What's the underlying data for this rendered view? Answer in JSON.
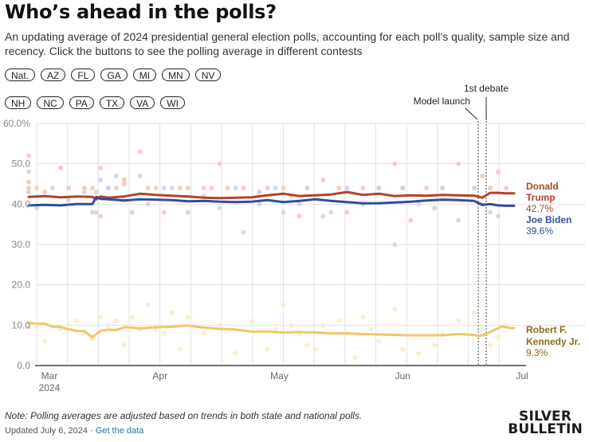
{
  "header": {
    "title": "Who’s ahead in the polls?",
    "subtitle": "An updating average of 2024 presidential general election polls, accounting for each poll’s quality, sample size and recency. Click the buttons to see the polling average in different contests"
  },
  "buttons": {
    "row1": [
      "Nat.",
      "AZ",
      "FL",
      "GA",
      "MI",
      "MN",
      "NV"
    ],
    "row2": [
      "NH",
      "NC",
      "PA",
      "TX",
      "VA",
      "WI"
    ]
  },
  "footer": {
    "note": "Note: Polling averages are adjusted based on trends in both state and national polls.",
    "updated": "Updated July 6, 2024",
    "separator": "·",
    "data_link": "Get the data",
    "logo_line1": "SILVER",
    "logo_line2": "BULLETIN"
  },
  "colors": {
    "trump": "#b5412b",
    "biden": "#2f4f9c",
    "kennedy": "#f5c46a",
    "kennedy_label": "#8a6a1e",
    "trump_dot": "#f2c4b8",
    "biden_dot": "#c9d2ea",
    "kennedy_dot": "#fde9c8",
    "grid": "#e2e2e2"
  },
  "chart_data": {
    "type": "line",
    "title": "Who’s ahead in the polls?",
    "xlabel": "",
    "ylabel": "",
    "x_range": [
      "2024-02-28",
      "2024-06-30"
    ],
    "ylim": [
      0,
      60
    ],
    "y_ticks": [
      {
        "value": 0,
        "label": "0.0"
      },
      {
        "value": 10,
        "label": "10.0"
      },
      {
        "value": 20,
        "label": "20.0"
      },
      {
        "value": 30,
        "label": "30.0"
      },
      {
        "value": 40,
        "label": "40.0"
      },
      {
        "value": 50,
        "label": "50.0"
      },
      {
        "value": 60,
        "label": "60.0%"
      }
    ],
    "x_ticks": [
      {
        "day": 2,
        "label": "Mar",
        "sublabel": "2024"
      },
      {
        "day": 33,
        "label": "Apr",
        "sublabel": ""
      },
      {
        "day": 63,
        "label": "May",
        "sublabel": ""
      },
      {
        "day": 94,
        "label": "Jun",
        "sublabel": ""
      },
      {
        "day": 124,
        "label": "Jul",
        "sublabel": ""
      }
    ],
    "grid": true,
    "legend": "right-end-labels",
    "annotations": [
      {
        "label": "Model launch",
        "day": 113
      },
      {
        "label": "1st debate",
        "day": 115
      }
    ],
    "series": [
      {
        "name": "Donald Trump",
        "label_line1": "Donald",
        "label_line2": "Trump",
        "final": "42.7%",
        "color": "#b5412b",
        "x": [
          0,
          4,
          8,
          12,
          16,
          17,
          18,
          20,
          24,
          28,
          32,
          36,
          40,
          44,
          48,
          52,
          56,
          60,
          64,
          68,
          72,
          76,
          80,
          84,
          88,
          92,
          96,
          100,
          104,
          108,
          112,
          114,
          116,
          118,
          120,
          122
        ],
        "values": [
          41.8,
          42.0,
          41.7,
          41.9,
          41.8,
          41.2,
          41.9,
          41.6,
          41.9,
          42.6,
          42.3,
          42.1,
          41.9,
          41.6,
          41.5,
          41.6,
          41.7,
          42.2,
          42.6,
          42.0,
          42.2,
          42.4,
          43.0,
          42.3,
          42.6,
          42.0,
          42.2,
          42.1,
          42.3,
          42.2,
          42.1,
          41.6,
          42.8,
          42.8,
          42.7,
          42.7
        ]
      },
      {
        "name": "Joe Biden",
        "label_line1": "Joe Biden",
        "label_line2": "",
        "final": "39.6%",
        "color": "#2f4f9c",
        "x": [
          0,
          4,
          8,
          12,
          16,
          17,
          18,
          20,
          24,
          28,
          32,
          36,
          40,
          44,
          48,
          52,
          56,
          60,
          64,
          68,
          72,
          76,
          80,
          84,
          88,
          92,
          96,
          100,
          104,
          108,
          112,
          114,
          116,
          118,
          120,
          122
        ],
        "values": [
          39.7,
          39.8,
          39.7,
          40.0,
          40.0,
          41.8,
          41.3,
          41.2,
          40.9,
          41.2,
          41.1,
          41.0,
          40.7,
          40.8,
          40.6,
          40.5,
          40.6,
          41.0,
          40.5,
          40.8,
          41.2,
          40.8,
          40.5,
          40.2,
          40.2,
          40.4,
          40.6,
          40.9,
          41.1,
          41.0,
          40.8,
          39.8,
          40.0,
          39.7,
          39.6,
          39.6
        ]
      },
      {
        "name": "Robert F. Kennedy Jr.",
        "label_line1": "Robert F.",
        "label_line2": "Kennedy Jr.",
        "final": "9.3%",
        "color": "#f5c46a",
        "x": [
          0,
          2,
          4,
          6,
          8,
          10,
          12,
          14,
          16,
          18,
          20,
          22,
          24,
          26,
          28,
          32,
          36,
          40,
          44,
          48,
          52,
          56,
          60,
          64,
          68,
          72,
          76,
          80,
          84,
          88,
          92,
          96,
          100,
          104,
          108,
          112,
          113,
          115,
          117,
          119,
          121,
          122
        ],
        "values": [
          10.5,
          10.4,
          10.4,
          9.6,
          9.6,
          9.0,
          8.6,
          8.5,
          7.0,
          8.6,
          8.9,
          8.8,
          9.5,
          9.4,
          9.2,
          9.5,
          9.6,
          9.9,
          9.4,
          9.1,
          8.9,
          8.4,
          8.4,
          8.2,
          8.3,
          8.2,
          8.0,
          8.0,
          7.8,
          7.7,
          7.6,
          7.5,
          7.5,
          7.5,
          7.8,
          7.6,
          7.3,
          7.8,
          8.8,
          9.7,
          9.3,
          9.3
        ]
      }
    ],
    "poll_dots": {
      "trump": [
        [
          0,
          52
        ],
        [
          0,
          45.5
        ],
        [
          0,
          44
        ],
        [
          2,
          44
        ],
        [
          4,
          43
        ],
        [
          8,
          49
        ],
        [
          10,
          44
        ],
        [
          14,
          44
        ],
        [
          16,
          44
        ],
        [
          17,
          43
        ],
        [
          18,
          37
        ],
        [
          18,
          49
        ],
        [
          20,
          44
        ],
        [
          22,
          44
        ],
        [
          24,
          45
        ],
        [
          24,
          46
        ],
        [
          28,
          53
        ],
        [
          30,
          44
        ],
        [
          32,
          44
        ],
        [
          34,
          38
        ],
        [
          38,
          44
        ],
        [
          40,
          44
        ],
        [
          44,
          44
        ],
        [
          46,
          44
        ],
        [
          48,
          50
        ],
        [
          50,
          44
        ],
        [
          54,
          44
        ],
        [
          58,
          43
        ],
        [
          60,
          44
        ],
        [
          64,
          44
        ],
        [
          66,
          42
        ],
        [
          68,
          37
        ],
        [
          70,
          44
        ],
        [
          74,
          46
        ],
        [
          78,
          44
        ],
        [
          80,
          38
        ],
        [
          84,
          44
        ],
        [
          88,
          44
        ],
        [
          92,
          50
        ],
        [
          94,
          44
        ],
        [
          96,
          36
        ],
        [
          100,
          44
        ],
        [
          104,
          44
        ],
        [
          108,
          50
        ],
        [
          112,
          44
        ],
        [
          114,
          47
        ],
        [
          116,
          44
        ],
        [
          118,
          48
        ],
        [
          120,
          44
        ]
      ],
      "biden": [
        [
          0,
          48
        ],
        [
          0,
          43
        ],
        [
          2,
          39
        ],
        [
          6,
          44
        ],
        [
          10,
          41
        ],
        [
          14,
          43
        ],
        [
          16,
          38
        ],
        [
          17,
          38
        ],
        [
          18,
          46
        ],
        [
          20,
          44
        ],
        [
          22,
          47
        ],
        [
          24,
          41
        ],
        [
          26,
          38
        ],
        [
          28,
          47
        ],
        [
          30,
          40
        ],
        [
          34,
          44
        ],
        [
          36,
          44
        ],
        [
          40,
          38
        ],
        [
          44,
          42
        ],
        [
          48,
          39
        ],
        [
          52,
          44
        ],
        [
          54,
          33
        ],
        [
          58,
          40
        ],
        [
          62,
          44
        ],
        [
          64,
          38
        ],
        [
          68,
          40
        ],
        [
          70,
          44
        ],
        [
          74,
          37
        ],
        [
          76,
          38
        ],
        [
          80,
          44
        ],
        [
          84,
          40
        ],
        [
          88,
          44
        ],
        [
          92,
          30
        ],
        [
          94,
          44
        ],
        [
          98,
          40
        ],
        [
          102,
          39
        ],
        [
          104,
          44
        ],
        [
          108,
          36
        ],
        [
          112,
          44
        ],
        [
          114,
          40
        ],
        [
          116,
          38
        ],
        [
          118,
          37
        ]
      ],
      "kennedy": [
        [
          0,
          9.5
        ],
        [
          2,
          9.5
        ],
        [
          4,
          6
        ],
        [
          8,
          9
        ],
        [
          10,
          10
        ],
        [
          12,
          11
        ],
        [
          14,
          8
        ],
        [
          16,
          6.5
        ],
        [
          18,
          12
        ],
        [
          20,
          10
        ],
        [
          22,
          11
        ],
        [
          24,
          5
        ],
        [
          26,
          12
        ],
        [
          28,
          9
        ],
        [
          30,
          15
        ],
        [
          32,
          9
        ],
        [
          34,
          8
        ],
        [
          36,
          13
        ],
        [
          38,
          4
        ],
        [
          40,
          12
        ],
        [
          44,
          8
        ],
        [
          48,
          10
        ],
        [
          52,
          3
        ],
        [
          56,
          11
        ],
        [
          60,
          4
        ],
        [
          62,
          9
        ],
        [
          64,
          15
        ],
        [
          66,
          10
        ],
        [
          68,
          8
        ],
        [
          70,
          5
        ],
        [
          72,
          4
        ],
        [
          74,
          10
        ],
        [
          78,
          11
        ],
        [
          80,
          8
        ],
        [
          82,
          2
        ],
        [
          84,
          12
        ],
        [
          86,
          9
        ],
        [
          88,
          6
        ],
        [
          92,
          14
        ],
        [
          94,
          4
        ],
        [
          98,
          3
        ],
        [
          102,
          5
        ],
        [
          104,
          8
        ],
        [
          108,
          11
        ],
        [
          112,
          13
        ],
        [
          114,
          9
        ],
        [
          116,
          5
        ],
        [
          118,
          7
        ],
        [
          120,
          10
        ]
      ]
    }
  }
}
